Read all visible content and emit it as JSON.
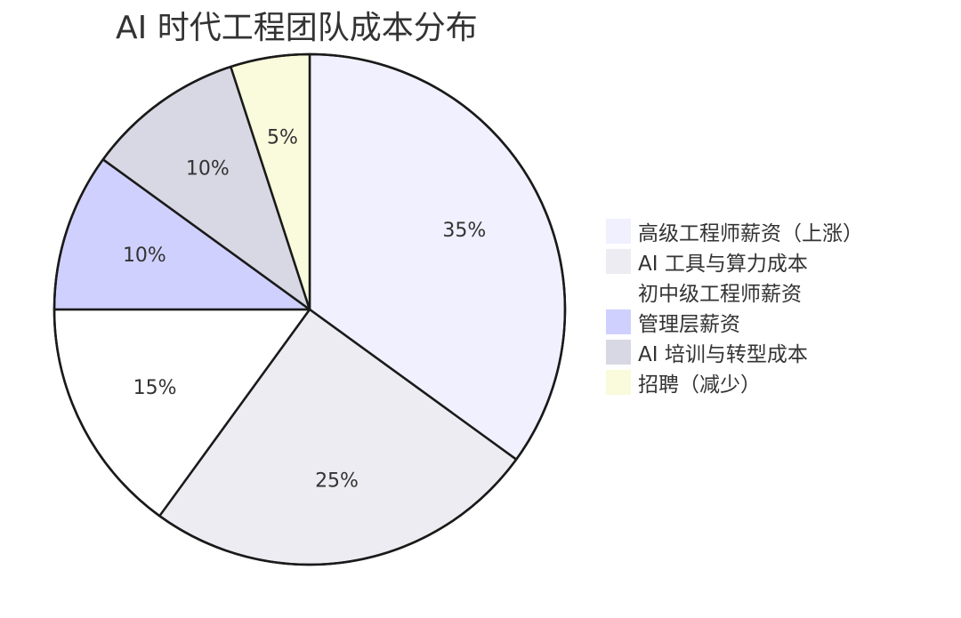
{
  "chart_data": {
    "type": "pie",
    "title": "AI 时代工程团队成本分布",
    "slices": [
      {
        "label": "高级工程师薪资（上涨）",
        "value": 35,
        "display": "35%",
        "color": "#f0f0ff"
      },
      {
        "label": "AI 工具与算力成本",
        "value": 25,
        "display": "25%",
        "color": "#ececf2"
      },
      {
        "label": "初中级工程师薪资",
        "value": 15,
        "display": "15%",
        "color": "#ffffff"
      },
      {
        "label": "管理层薪资",
        "value": 10,
        "display": "10%",
        "color": "#d0d0ff"
      },
      {
        "label": "AI 培训与转型成本",
        "value": 10,
        "display": "10%",
        "color": "#d8d8e4"
      },
      {
        "label": "招聘（减少）",
        "value": 5,
        "display": "5%",
        "color": "#fafadc"
      }
    ],
    "legend_position": "right",
    "start_angle": "top",
    "direction": "clockwise"
  }
}
